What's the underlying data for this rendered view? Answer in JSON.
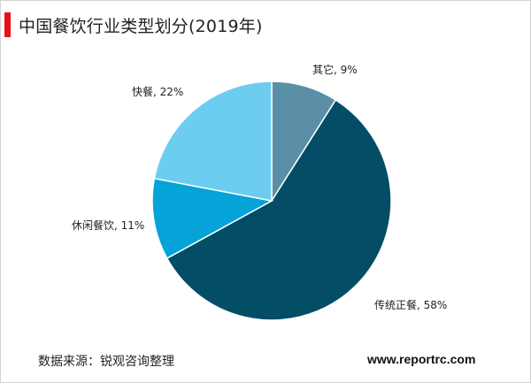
{
  "header": {
    "title": "中国餐饮行业类型划分(2019年)",
    "accent_color": "#e8101a"
  },
  "chart_data": {
    "type": "pie",
    "title": "中国餐饮行业类型划分(2019年)",
    "categories": [
      "其它",
      "传统正餐",
      "休闲餐饮",
      "快餐"
    ],
    "values": [
      9,
      58,
      11,
      22
    ],
    "unit": "%",
    "labels": [
      "其它, 9%",
      "传统正餐, 58%",
      "休闲餐饮, 11%",
      "快餐, 22%"
    ],
    "colors": [
      "#5b8fa8",
      "#034d66",
      "#06a3d9",
      "#6dcdf0"
    ],
    "start_angle": "12 o'clock",
    "direction": "clockwise",
    "legend": "none"
  },
  "footer": {
    "source": "数据来源：锐观咨询整理",
    "watermark": "www.reportrc.com"
  }
}
